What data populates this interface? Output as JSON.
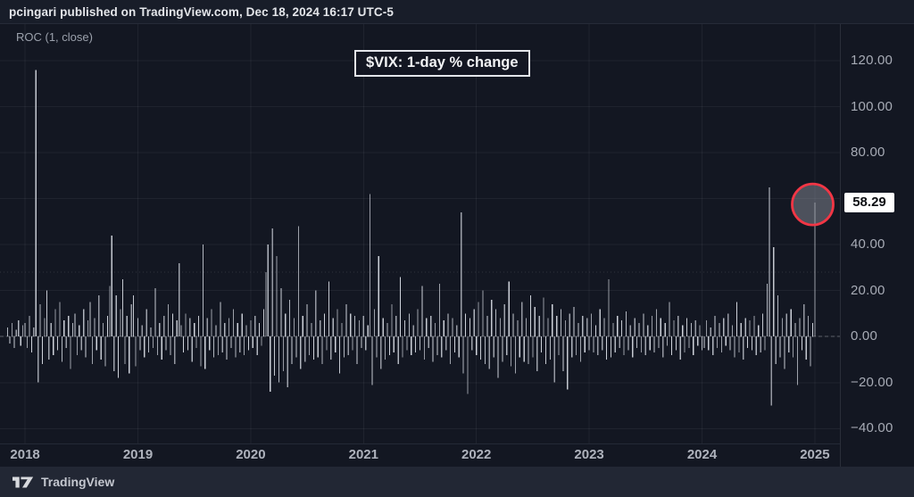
{
  "header": {
    "published_line": "pcingari published on TradingView.com, Dec 18, 2024 16:17 UTC-5"
  },
  "legend": {
    "indicator": "ROC (1, close)"
  },
  "title_box": {
    "text": "$VIX: 1-day % change"
  },
  "footer": {
    "brand": "TradingView",
    "logo_icon": "tradingview-logo"
  },
  "colors": {
    "background": "#131722",
    "header_bg": "#181d29",
    "footer_bg": "#222734",
    "bars": "#ced2da",
    "grid": "rgba(255,255,255,0.055)",
    "zero_line": "#5d6069",
    "axis_text": "#a7abb5",
    "highlight_red": "#f23645",
    "badge_bg": "#ffffff",
    "badge_text": "#0b0d12"
  },
  "price_axis": {
    "ticks": [
      {
        "label": "120.00",
        "value": 120
      },
      {
        "label": "100.00",
        "value": 100
      },
      {
        "label": "80.00",
        "value": 80
      },
      {
        "label": "40.00",
        "value": 40
      },
      {
        "label": "20.00",
        "value": 20
      },
      {
        "label": "0.00",
        "value": 0
      },
      {
        "label": "−20.00",
        "value": -20
      },
      {
        "label": "−40.00",
        "value": -40
      }
    ],
    "last": {
      "label": "58.29",
      "value": 58.29
    }
  },
  "chart_data": {
    "type": "bar",
    "title": "$VIX: 1-day % change",
    "xlabel": "",
    "ylabel": "",
    "xlim": [
      2017.778,
      2025.222
    ],
    "ylim": [
      -46.5,
      136
    ],
    "x_tick_years": [
      2018,
      2019,
      2020,
      2021,
      2022,
      2023,
      2024,
      2025
    ],
    "y_gridlines": [
      -40,
      -20,
      0,
      20,
      40,
      60,
      80,
      100,
      120
    ],
    "zero_line": {
      "value": 0,
      "style": "dashed"
    },
    "dotted_level": 28,
    "highlight": {
      "type": "circle",
      "x_year": 2024.9808,
      "value": 58.29,
      "radius_px": 23
    },
    "x_start_year": 2017.8462,
    "points_per_year": 52,
    "series": [
      {
        "name": "ROC (1, close)",
        "values": [
          4,
          -3,
          6,
          -5,
          3,
          7,
          -4,
          5,
          6,
          -5,
          9,
          -7,
          4,
          116,
          -20,
          14,
          -12,
          8,
          20,
          -10,
          6,
          -8,
          12,
          -6,
          15,
          -11,
          7,
          -5,
          9,
          -14,
          6,
          10,
          -8,
          5,
          -6,
          12,
          -9,
          7,
          15,
          -12,
          8,
          -6,
          18,
          -10,
          6,
          -13,
          9,
          22,
          44,
          -15,
          18,
          -18,
          12,
          25,
          -12,
          9,
          -16,
          14,
          18,
          -13,
          8,
          -6,
          5,
          -9,
          12,
          -7,
          4,
          -5,
          21,
          -8,
          6,
          -10,
          9,
          -6,
          14,
          -8,
          10,
          -12,
          7,
          32,
          5,
          -7,
          10,
          -6,
          8,
          -11,
          6,
          -5,
          9,
          -13,
          40,
          -14,
          8,
          -6,
          12,
          -9,
          5,
          -8,
          15,
          -7,
          6,
          -10,
          8,
          -5,
          12,
          -9,
          6,
          -7,
          10,
          -8,
          5,
          -6,
          7,
          -5,
          9,
          -8,
          6,
          -4,
          12,
          28,
          40,
          -24,
          47,
          -17,
          35,
          -20,
          21,
          -15,
          10,
          -22,
          16,
          -12,
          8,
          -9,
          48,
          -14,
          9,
          -11,
          14,
          -8,
          6,
          -10,
          20,
          -9,
          7,
          -12,
          10,
          -6,
          24,
          -10,
          8,
          -7,
          12,
          -16,
          6,
          -9,
          14,
          -8,
          10,
          -6,
          9,
          -12,
          7,
          -5,
          9,
          -6,
          5,
          62,
          -21,
          12,
          -9,
          35,
          -14,
          8,
          -10,
          6,
          -8,
          14,
          -7,
          9,
          -12,
          26,
          -9,
          7,
          -6,
          10,
          -8,
          5,
          -7,
          12,
          -6,
          22,
          -10,
          8,
          -5,
          9,
          -11,
          6,
          -8,
          23,
          -9,
          7,
          -6,
          10,
          -12,
          8,
          -7,
          5,
          -9,
          54,
          -16,
          10,
          -25,
          8,
          -6,
          12,
          -8,
          15,
          -10,
          20,
          -12,
          9,
          -14,
          16,
          -9,
          12,
          -18,
          8,
          -11,
          14,
          -8,
          24,
          -13,
          10,
          -16,
          7,
          -9,
          15,
          -11,
          8,
          -12,
          18,
          -9,
          13,
          -15,
          9,
          -7,
          17,
          -12,
          8,
          -10,
          14,
          -20,
          9,
          -8,
          12,
          -15,
          7,
          -23,
          10,
          -9,
          13,
          -8,
          6,
          -11,
          9,
          -7,
          8,
          -6,
          10,
          -7,
          5,
          -8,
          12,
          -6,
          8,
          -10,
          25,
          -9,
          6,
          -7,
          9,
          -5,
          7,
          -8,
          11,
          -6,
          5,
          -9,
          8,
          -5,
          6,
          -7,
          10,
          -8,
          5,
          -6,
          9,
          -7,
          12,
          -5,
          8,
          -9,
          6,
          -4,
          15,
          -8,
          7,
          -6,
          9,
          -10,
          5,
          -7,
          8,
          -5,
          6,
          -8,
          7,
          -4,
          5,
          -6,
          -5,
          7,
          -6,
          4,
          -8,
          9,
          -5,
          6,
          -7,
          8,
          -4,
          10,
          -6,
          5,
          -9,
          15,
          -7,
          6,
          -10,
          8,
          -5,
          7,
          -6,
          9,
          -8,
          5,
          -7,
          10,
          -6,
          23,
          65,
          -30,
          39,
          -12,
          18,
          -9,
          8,
          -14,
          10,
          -7,
          12,
          -9,
          6,
          -21,
          8,
          -6,
          14,
          -10,
          9,
          -13,
          6,
          58.29
        ]
      }
    ]
  }
}
